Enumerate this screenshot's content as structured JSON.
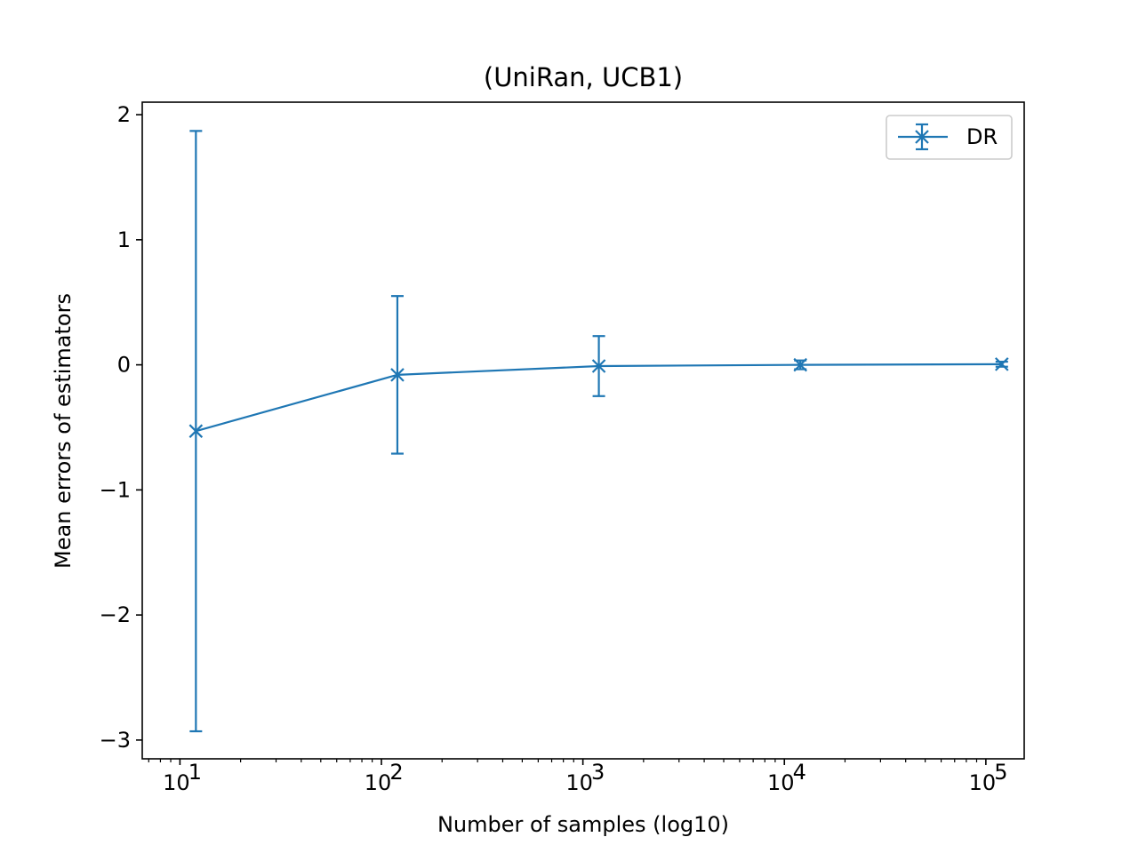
{
  "chart_data": {
    "type": "line",
    "title": "(UniRan, UCB1)",
    "xlabel": "Number of samples (log10)",
    "ylabel": "Mean errors of estimators",
    "x_scale": "log",
    "xlim": [
      6.5,
      155000
    ],
    "ylim": [
      -3.15,
      2.1
    ],
    "x_ticks": [
      {
        "value": 10,
        "base": "10",
        "exp": "1"
      },
      {
        "value": 100,
        "base": "10",
        "exp": "2"
      },
      {
        "value": 1000,
        "base": "10",
        "exp": "3"
      },
      {
        "value": 10000,
        "base": "10",
        "exp": "4"
      },
      {
        "value": 100000,
        "base": "10",
        "exp": "5"
      }
    ],
    "y_ticks": [
      {
        "value": 2,
        "label": "2"
      },
      {
        "value": 1,
        "label": "1"
      },
      {
        "value": 0,
        "label": "0"
      },
      {
        "value": -1,
        "label": "−1"
      },
      {
        "value": -2,
        "label": "−2"
      },
      {
        "value": -3,
        "label": "−3"
      }
    ],
    "grid": false,
    "legend_position": "top-right",
    "series": [
      {
        "name": "DR",
        "color": "#1f77b4",
        "marker": "x",
        "x": [
          12,
          120,
          1200,
          12000,
          120000
        ],
        "y": [
          -0.53,
          -0.08,
          -0.01,
          0.0,
          0.005
        ],
        "yerr": [
          2.4,
          0.63,
          0.24,
          0.035,
          0.02
        ]
      }
    ]
  }
}
